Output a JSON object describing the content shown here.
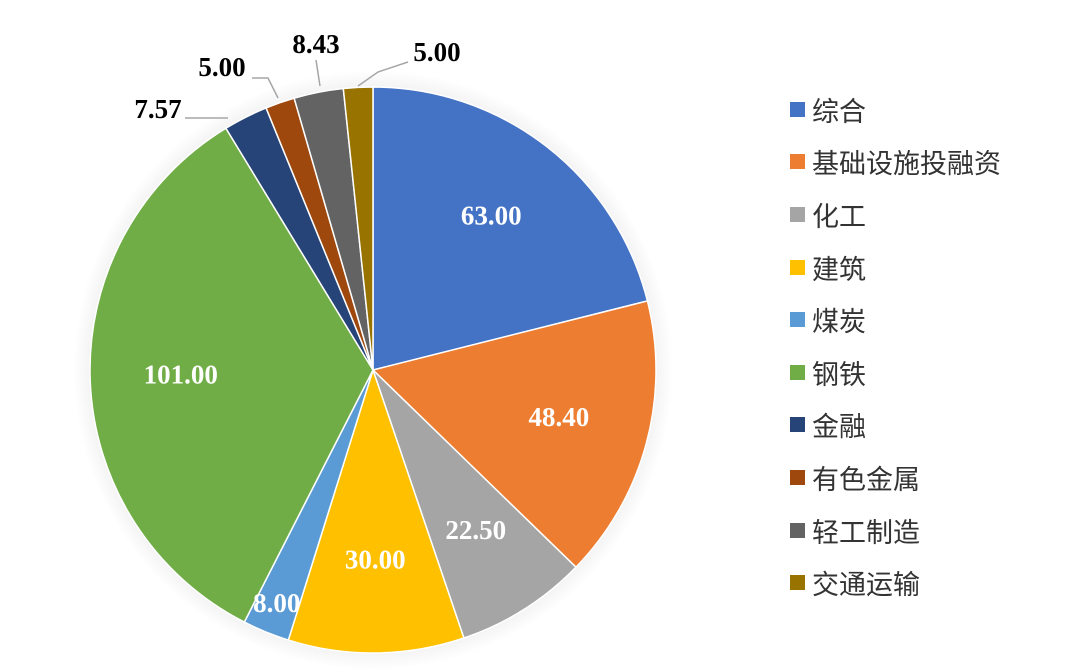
{
  "chart_data": {
    "type": "pie",
    "title": "",
    "start_angle_deg": 0,
    "direction": "clockwise",
    "slices": [
      {
        "label": "综合",
        "value": 63.0,
        "display": "63.00",
        "color": "#4472C4",
        "label_color": "#ffffff",
        "label_mode": "inside"
      },
      {
        "label": "基础设施投融资",
        "value": 48.4,
        "display": "48.40",
        "color": "#ED7D31",
        "label_color": "#ffffff",
        "label_mode": "inside"
      },
      {
        "label": "化工",
        "value": 22.5,
        "display": "22.50",
        "color": "#A5A5A5",
        "label_color": "#ffffff",
        "label_mode": "inside"
      },
      {
        "label": "建筑",
        "value": 30.0,
        "display": "30.00",
        "color": "#FFC000",
        "label_color": "#ffffff",
        "label_mode": "inside"
      },
      {
        "label": "煤炭",
        "value": 8.0,
        "display": "8.00",
        "color": "#5B9BD5",
        "label_color": "#ffffff",
        "label_mode": "inside"
      },
      {
        "label": "钢铁",
        "value": 101.0,
        "display": "101.00",
        "color": "#70AD47",
        "label_color": "#ffffff",
        "label_mode": "inside"
      },
      {
        "label": "金融",
        "value": 7.57,
        "display": "7.57",
        "color": "#264478",
        "label_color": "#000000",
        "label_mode": "outside"
      },
      {
        "label": "有色金属",
        "value": 5.0,
        "display": "5.00",
        "color": "#9E480E",
        "label_color": "#000000",
        "label_mode": "outside"
      },
      {
        "label": "轻工制造",
        "value": 8.43,
        "display": "8.43",
        "color": "#636363",
        "label_color": "#000000",
        "label_mode": "outside"
      },
      {
        "label": "交通运输",
        "value": 5.0,
        "display": "5.00",
        "color": "#997300",
        "label_color": "#000000",
        "label_mode": "outside"
      }
    ],
    "legend_position": "right"
  }
}
